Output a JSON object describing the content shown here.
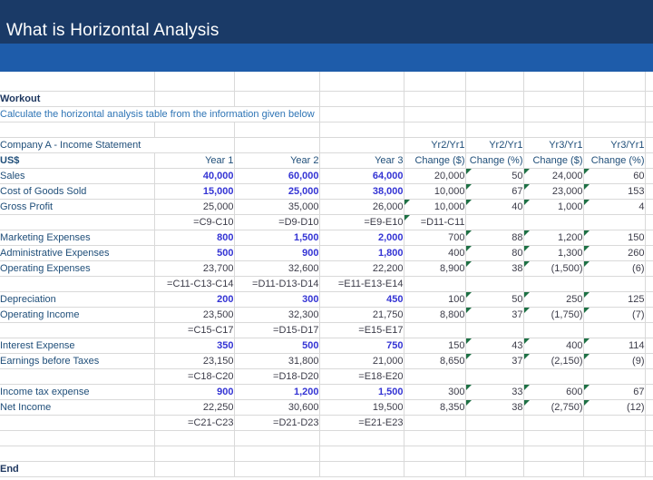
{
  "title_bar": {
    "title": "What is Horizontal Analysis"
  },
  "colors": {
    "header_navy": "#1a3a67",
    "accent_band_blue": "#1e5caa",
    "input_number_blue": "#3434d4",
    "label_blue": "#1f4e79",
    "instruction_blue": "#2e74b5",
    "gridline_gray": "#d9d9d9",
    "error_flag_green": "#1d7044"
  },
  "sheet": {
    "workout_label": "Workout",
    "instruction": "Calculate the horizontal analysis table from the information given below",
    "end_label": "End",
    "statement": {
      "title": "Company A - Income Statement",
      "yr_headers": [
        "Yr2/Yr1",
        "Yr2/Yr1",
        "Yr3/Yr1",
        "Yr3/Yr1"
      ],
      "col_headers": [
        "US$",
        "Year 1",
        "Year 2",
        "Year 3",
        "Change ($)",
        "Change (%)",
        "Change ($)",
        "Change (%)"
      ],
      "rows": [
        {
          "label": "Sales",
          "cells": [
            [
              "40,000",
              "i"
            ],
            [
              "60,000",
              "i"
            ],
            [
              "64,000",
              "i"
            ],
            [
              "20,000",
              "c"
            ],
            [
              "50",
              "cf"
            ],
            [
              "24,000",
              "cf"
            ],
            [
              "60",
              "cf"
            ]
          ]
        },
        {
          "label": "Cost of Goods Sold",
          "cells": [
            [
              "15,000",
              "i"
            ],
            [
              "25,000",
              "i"
            ],
            [
              "38,000",
              "i"
            ],
            [
              "10,000",
              "c"
            ],
            [
              "67",
              "cf"
            ],
            [
              "23,000",
              "cf"
            ],
            [
              "153",
              "cf"
            ]
          ]
        },
        {
          "label": "Gross Profit",
          "cells": [
            [
              "25,000",
              "c"
            ],
            [
              "35,000",
              "c"
            ],
            [
              "26,000",
              "c"
            ],
            [
              "10,000",
              "cf"
            ],
            [
              "40",
              "cf"
            ],
            [
              "1,000",
              "cf"
            ],
            [
              "4",
              "cf"
            ]
          ]
        },
        {
          "label": "",
          "t": "f",
          "cells": [
            [
              "=C9-C10",
              "m"
            ],
            [
              "=D9-D10",
              "m"
            ],
            [
              "=E9-E10",
              "m"
            ],
            [
              "=D11-C11",
              "mf"
            ],
            null,
            null,
            null
          ]
        },
        {
          "label": "Marketing Expenses",
          "cells": [
            [
              "800",
              "i"
            ],
            [
              "1,500",
              "i"
            ],
            [
              "2,000",
              "i"
            ],
            [
              "700",
              "c"
            ],
            [
              "88",
              "cf"
            ],
            [
              "1,200",
              "cf"
            ],
            [
              "150",
              "cf"
            ]
          ]
        },
        {
          "label": "Administrative Expenses",
          "cells": [
            [
              "500",
              "i"
            ],
            [
              "900",
              "i"
            ],
            [
              "1,800",
              "i"
            ],
            [
              "400",
              "c"
            ],
            [
              "80",
              "cf"
            ],
            [
              "1,300",
              "cf"
            ],
            [
              "260",
              "cf"
            ]
          ]
        },
        {
          "label": "Operating Expenses",
          "cells": [
            [
              "23,700",
              "c"
            ],
            [
              "32,600",
              "c"
            ],
            [
              "22,200",
              "c"
            ],
            [
              "8,900",
              "c"
            ],
            [
              "38",
              "cf"
            ],
            [
              "(1,500)",
              "cf"
            ],
            [
              "(6)",
              "cf"
            ]
          ]
        },
        {
          "label": "",
          "t": "f",
          "cells": [
            [
              "=C11-C13-C14",
              "m"
            ],
            [
              "=D11-D13-D14",
              "m"
            ],
            [
              "=E11-E13-E14",
              "m"
            ],
            null,
            null,
            null,
            null
          ]
        },
        {
          "label": "Depreciation",
          "cells": [
            [
              "200",
              "i"
            ],
            [
              "300",
              "i"
            ],
            [
              "450",
              "i"
            ],
            [
              "100",
              "c"
            ],
            [
              "50",
              "cf"
            ],
            [
              "250",
              "cf"
            ],
            [
              "125",
              "cf"
            ]
          ]
        },
        {
          "label": "Operating Income",
          "cells": [
            [
              "23,500",
              "c"
            ],
            [
              "32,300",
              "c"
            ],
            [
              "21,750",
              "c"
            ],
            [
              "8,800",
              "c"
            ],
            [
              "37",
              "cf"
            ],
            [
              "(1,750)",
              "cf"
            ],
            [
              "(7)",
              "cf"
            ]
          ]
        },
        {
          "label": "",
          "t": "f",
          "cells": [
            [
              "=C15-C17",
              "m"
            ],
            [
              "=D15-D17",
              "m"
            ],
            [
              "=E15-E17",
              "m"
            ],
            null,
            null,
            null,
            null
          ]
        },
        {
          "label": "Interest Expense",
          "cells": [
            [
              "350",
              "i"
            ],
            [
              "500",
              "i"
            ],
            [
              "750",
              "i"
            ],
            [
              "150",
              "c"
            ],
            [
              "43",
              "cf"
            ],
            [
              "400",
              "cf"
            ],
            [
              "114",
              "cf"
            ]
          ]
        },
        {
          "label": "Earnings before Taxes",
          "cells": [
            [
              "23,150",
              "c"
            ],
            [
              "31,800",
              "c"
            ],
            [
              "21,000",
              "c"
            ],
            [
              "8,650",
              "c"
            ],
            [
              "37",
              "cf"
            ],
            [
              "(2,150)",
              "cf"
            ],
            [
              "(9)",
              "cf"
            ]
          ]
        },
        {
          "label": "",
          "t": "f",
          "cells": [
            [
              "=C18-C20",
              "m"
            ],
            [
              "=D18-D20",
              "m"
            ],
            [
              "=E18-E20",
              "m"
            ],
            null,
            null,
            null,
            null
          ]
        },
        {
          "label": "Income tax expense",
          "cells": [
            [
              "900",
              "i"
            ],
            [
              "1,200",
              "i"
            ],
            [
              "1,500",
              "i"
            ],
            [
              "300",
              "c"
            ],
            [
              "33",
              "cf"
            ],
            [
              "600",
              "cf"
            ],
            [
              "67",
              "cf"
            ]
          ]
        },
        {
          "label": "Net Income",
          "cells": [
            [
              "22,250",
              "c"
            ],
            [
              "30,600",
              "c"
            ],
            [
              "19,500",
              "c"
            ],
            [
              "8,350",
              "c"
            ],
            [
              "38",
              "cf"
            ],
            [
              "(2,750)",
              "cf"
            ],
            [
              "(12)",
              "cf"
            ]
          ]
        },
        {
          "label": "",
          "t": "f",
          "cells": [
            [
              "=C21-C23",
              "m"
            ],
            [
              "=D21-D23",
              "m"
            ],
            [
              "=E21-E23",
              "m"
            ],
            null,
            null,
            null,
            null
          ]
        }
      ]
    }
  }
}
